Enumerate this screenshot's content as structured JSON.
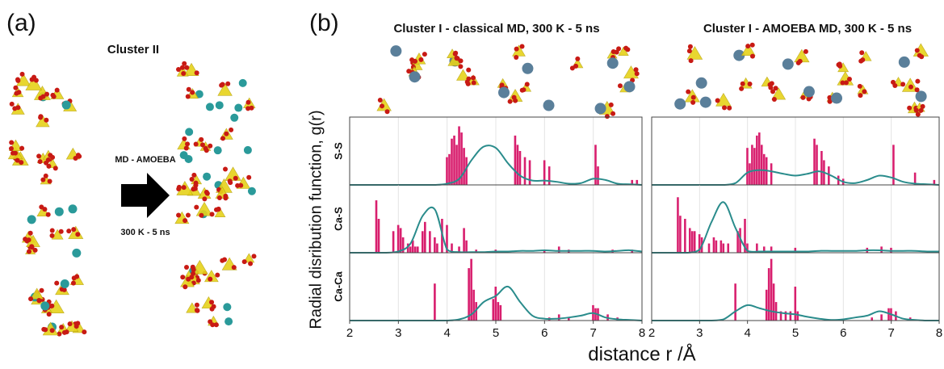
{
  "panel_a": {
    "label": "(a)",
    "title": "Cluster II",
    "arrow_top": "MD - AMOEBA",
    "arrow_bottom": "300 K - 5 ns"
  },
  "chart_data": {
    "type": "histogram",
    "label": "(b)",
    "columns": [
      "Cluster I - classical MD, 300 K - 5 ns",
      "Cluster I - AMOEBA MD, 300 K - 5 ns"
    ],
    "rows": [
      "S-S",
      "Ca-S",
      "Ca-Ca"
    ],
    "y_label": "Radial disribution function, g(r)",
    "x_label": "distance r /Å",
    "xlim": [
      2,
      8
    ],
    "xticks": [
      2,
      3,
      4,
      5,
      6,
      7,
      8
    ],
    "ylim": [
      0,
      1.1
    ],
    "grid": true,
    "bar_color": "#d81f6e",
    "curve_color": "#2a8c8c",
    "bar_width": 0.05,
    "curve_x": [
      2,
      2.25,
      2.5,
      2.75,
      3,
      3.25,
      3.5,
      3.75,
      4,
      4.25,
      4.5,
      4.75,
      5,
      5.25,
      5.5,
      5.75,
      6,
      6.25,
      6.5,
      6.75,
      7,
      7.25,
      7.5,
      7.75,
      8
    ],
    "panels": [
      {
        "bar_x": [
          4.0,
          4.05,
          4.1,
          4.15,
          4.2,
          4.25,
          4.3,
          4.35,
          4.4,
          5.4,
          5.45,
          5.5,
          5.6,
          5.7,
          6.0,
          6.1,
          7.05,
          7.1,
          7.8,
          7.9
        ],
        "values": [
          0.45,
          0.5,
          0.75,
          0.8,
          0.65,
          0.95,
          0.85,
          0.6,
          0.45,
          0.8,
          0.65,
          0.55,
          0.45,
          0.4,
          0.4,
          0.3,
          0.65,
          0.3,
          0.08,
          0.08
        ],
        "curve": [
          0,
          0,
          0,
          0,
          0,
          0,
          0,
          0,
          0.02,
          0.1,
          0.4,
          0.62,
          0.6,
          0.35,
          0.15,
          0.07,
          0.07,
          0.05,
          0.02,
          0.03,
          0.1,
          0.08,
          0.02,
          0.01,
          0
        ]
      },
      {
        "bar_x": [
          4.0,
          4.05,
          4.1,
          4.15,
          4.2,
          4.25,
          4.3,
          4.35,
          4.4,
          4.5,
          5.4,
          5.45,
          5.55,
          5.6,
          5.7,
          5.9,
          6.0,
          7.05,
          7.5,
          7.9
        ],
        "values": [
          0.6,
          0.35,
          0.65,
          0.6,
          0.8,
          0.85,
          0.65,
          0.5,
          0.45,
          0.35,
          0.75,
          0.65,
          0.55,
          0.4,
          0.3,
          0.15,
          0.1,
          0.65,
          0.2,
          0.08
        ],
        "curve": [
          0,
          0,
          0,
          0,
          0,
          0,
          0,
          0.03,
          0.2,
          0.24,
          0.22,
          0.18,
          0.15,
          0.18,
          0.22,
          0.15,
          0.05,
          0.03,
          0.08,
          0.15,
          0.12,
          0.05,
          0.02,
          0.01,
          0
        ]
      },
      {
        "bar_x": [
          2.55,
          2.6,
          2.9,
          3.0,
          3.05,
          3.1,
          3.2,
          3.25,
          3.3,
          3.35,
          3.4,
          3.5,
          3.55,
          3.65,
          3.75,
          3.8,
          3.9,
          4.0,
          4.1,
          4.25,
          4.35,
          4.4,
          4.6,
          5.0,
          6.0,
          6.3,
          6.5,
          7.4,
          7.8
        ],
        "values": [
          0.85,
          0.55,
          0.35,
          0.45,
          0.4,
          0.25,
          0.15,
          0.1,
          0.2,
          0.1,
          0.1,
          0.35,
          0.5,
          0.35,
          0.25,
          0.15,
          0.55,
          0.45,
          0.15,
          0.1,
          0.4,
          0.2,
          0.05,
          0.05,
          0.05,
          0.1,
          0.05,
          0.05,
          0.05
        ],
        "curve": [
          0,
          0,
          0,
          0,
          0.02,
          0.15,
          0.6,
          0.7,
          0.05,
          0.01,
          0.01,
          0.01,
          0.02,
          0.02,
          0.03,
          0.03,
          0.04,
          0.03,
          0.03,
          0.03,
          0.03,
          0.02,
          0.03,
          0.04,
          0.02
        ]
      },
      {
        "bar_x": [
          2.55,
          2.6,
          2.7,
          2.8,
          2.85,
          2.9,
          3.0,
          3.05,
          3.2,
          3.3,
          3.35,
          3.45,
          3.5,
          3.6,
          3.8,
          3.85,
          3.95,
          4.0,
          4.2,
          4.35,
          4.5,
          5.0,
          6.5,
          6.8,
          7.0
        ],
        "values": [
          0.9,
          0.6,
          0.55,
          0.4,
          0.35,
          0.35,
          0.3,
          0.25,
          0.15,
          0.25,
          0.2,
          0.2,
          0.15,
          0.15,
          0.35,
          0.4,
          0.55,
          0.15,
          0.15,
          0.1,
          0.1,
          0.08,
          0.08,
          0.1,
          0.08
        ],
        "curve": [
          0,
          0,
          0,
          0,
          0.05,
          0.5,
          0.82,
          0.4,
          0.03,
          0.02,
          0.02,
          0.02,
          0.02,
          0.02,
          0.03,
          0.03,
          0.03,
          0.03,
          0.04,
          0.04,
          0.03,
          0.03,
          0.03,
          0.02,
          0.02
        ]
      },
      {
        "bar_x": [
          3.75,
          4.45,
          4.5,
          4.55,
          4.6,
          4.95,
          5.0,
          5.05,
          5.1,
          6.1,
          6.3,
          6.5,
          7.0,
          7.05,
          7.1,
          7.3,
          7.5
        ],
        "values": [
          0.6,
          0.85,
          1.0,
          0.5,
          0.3,
          0.35,
          0.55,
          0.3,
          0.25,
          0.05,
          0.1,
          0.05,
          0.25,
          0.2,
          0.2,
          0.1,
          0.05
        ],
        "curve": [
          0,
          0,
          0,
          0,
          0,
          0,
          0,
          0,
          0,
          0.02,
          0.1,
          0.3,
          0.4,
          0.55,
          0.3,
          0.08,
          0.03,
          0.03,
          0.05,
          0.08,
          0.12,
          0.05,
          0.02,
          0.01,
          0
        ]
      },
      {
        "bar_x": [
          3.75,
          4.4,
          4.45,
          4.5,
          4.55,
          4.6,
          4.7,
          4.8,
          4.9,
          5.0,
          5.05,
          6.6,
          6.8,
          6.95,
          7.0,
          7.1,
          7.4
        ],
        "values": [
          0.6,
          0.5,
          0.85,
          1.0,
          0.6,
          0.3,
          0.15,
          0.15,
          0.15,
          0.55,
          0.15,
          0.05,
          0.1,
          0.2,
          0.2,
          0.15,
          0.05
        ],
        "curve": [
          0,
          0,
          0,
          0,
          0,
          0,
          0.02,
          0.15,
          0.25,
          0.2,
          0.15,
          0.12,
          0.1,
          0.06,
          0.03,
          0.01,
          0.02,
          0.05,
          0.08,
          0.15,
          0.1,
          0.03,
          0.01,
          0,
          0
        ]
      }
    ]
  }
}
